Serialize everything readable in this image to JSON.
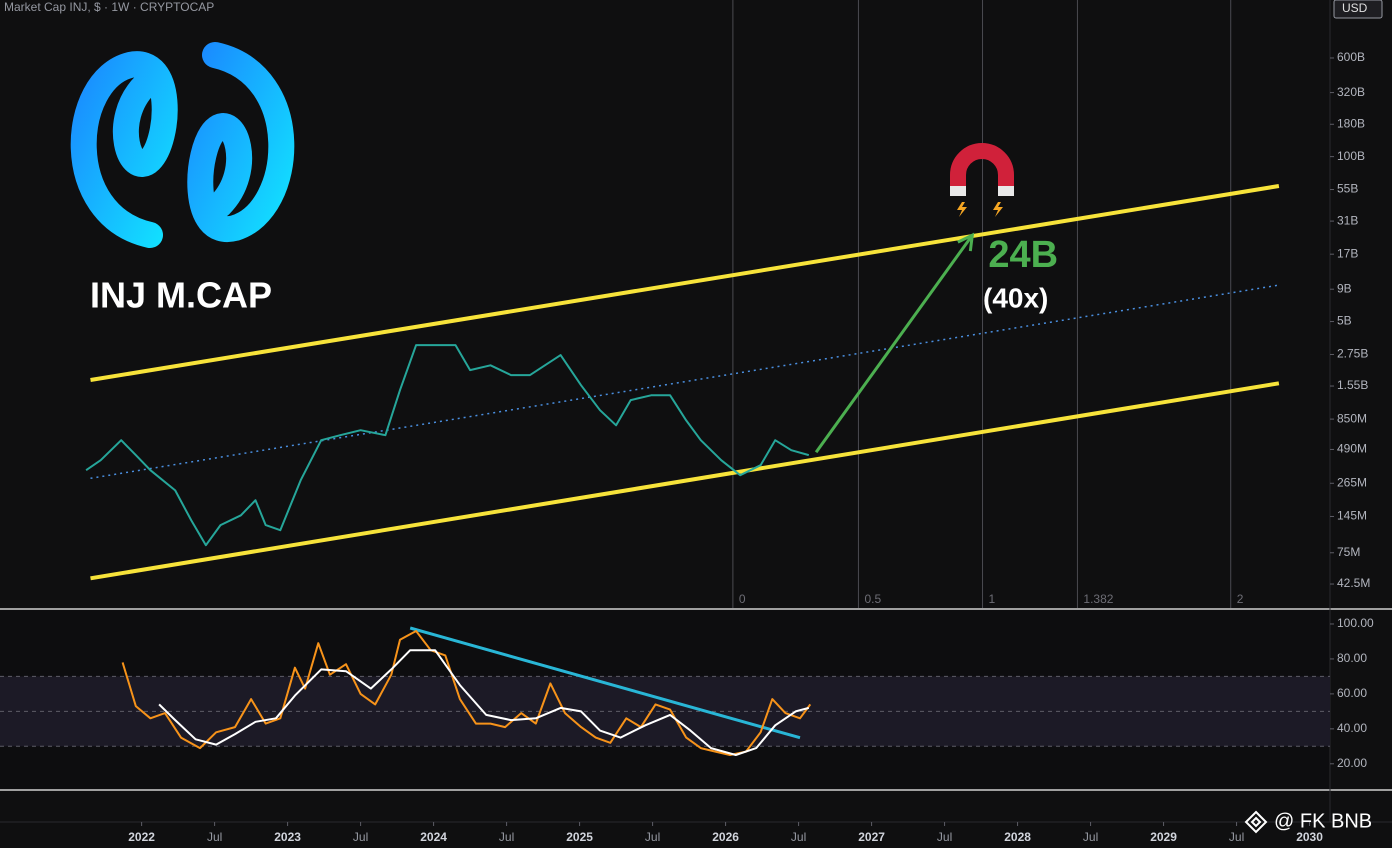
{
  "header": "Market Cap INJ, $ · 1W · CRYPTOCAP",
  "currency": "USD",
  "watermark": "@ FK BNB",
  "chart_data": [
    {
      "type": "line",
      "log_scale": true,
      "title": "INJ M.CAP",
      "xlim": [
        2021.03,
        2030.14
      ],
      "ylim": [
        27500000,
        1720000000000
      ],
      "yticks": [
        {
          "value": 600000000000,
          "label": "600B"
        },
        {
          "value": 320000000000,
          "label": "320B"
        },
        {
          "value": 180000000000,
          "label": "180B"
        },
        {
          "value": 100000000000,
          "label": "100B"
        },
        {
          "value": 55000000000,
          "label": "55B"
        },
        {
          "value": 31000000000,
          "label": "31B"
        },
        {
          "value": 17000000000,
          "label": "17B"
        },
        {
          "value": 9000000000,
          "label": "9B"
        },
        {
          "value": 5000000000,
          "label": "5B"
        },
        {
          "value": 2750000000,
          "label": "2.75B"
        },
        {
          "value": 1550000000,
          "label": "1.55B"
        },
        {
          "value": 850000000,
          "label": "850M"
        },
        {
          "value": 490000000,
          "label": "490M"
        },
        {
          "value": 265000000,
          "label": "265M"
        },
        {
          "value": 145000000,
          "label": "145M"
        },
        {
          "value": 75000000,
          "label": "75M"
        },
        {
          "value": 42500000,
          "label": "42.5M"
        }
      ],
      "xticks": [
        2022,
        {
          "value": 2022.5,
          "label": "Jul"
        },
        2023,
        {
          "value": 2023.5,
          "label": "Jul"
        },
        2024,
        {
          "value": 2024.5,
          "label": "Jul"
        },
        2025,
        {
          "value": 2025.5,
          "label": "Jul"
        },
        2026,
        {
          "value": 2026.5,
          "label": "Jul"
        },
        2027,
        {
          "value": 2027.5,
          "label": "Jul"
        },
        2028,
        {
          "value": 2028.5,
          "label": "Jul"
        },
        2029,
        {
          "value": 2029.5,
          "label": "Jul"
        },
        2030
      ],
      "series": [
        {
          "color": "#26a69a",
          "x": [
            2021.62,
            2021.72,
            2021.86,
            2021.96,
            2022.06,
            2022.23,
            2022.34,
            2022.44,
            2022.54,
            2022.68,
            2022.78,
            2022.85,
            2022.95,
            2023.09,
            2023.23,
            2023.36,
            2023.5,
            2023.67,
            2023.77,
            2023.88,
            2024.01,
            2024.15,
            2024.25,
            2024.39,
            2024.53,
            2024.66,
            2024.87,
            2025.01,
            2025.14,
            2025.25,
            2025.35,
            2025.49,
            2025.62,
            2025.73,
            2025.83,
            2025.97,
            2026.1,
            2026.24,
            2026.34,
            2026.45,
            2026.57
          ],
          "values": [
            336000000,
            403000000,
            579000000,
            442000000,
            336000000,
            233000000,
            135000000,
            86000000,
            124000000,
            148000000,
            195000000,
            124000000,
            113000000,
            280000000,
            579000000,
            634000000,
            695000000,
            634000000,
            1440000000,
            3260000000,
            3260000000,
            3260000000,
            2070000000,
            2260000000,
            1890000000,
            1890000000,
            2720000000,
            1570000000,
            1000000000,
            760000000,
            1200000000,
            1310000000,
            1310000000,
            830000000,
            579000000,
            403000000,
            307000000,
            368000000,
            579000000,
            483000000,
            442000000
          ]
        }
      ],
      "trendlines": [
        {
          "color": "#f7e33a",
          "style": "solid",
          "x": [
            2021.65,
            2029.79
          ],
          "values": [
            1730000000,
            58600000000
          ]
        },
        {
          "color": "#4a8fe0",
          "style": "dotted",
          "x": [
            2021.65,
            2029.79
          ],
          "values": [
            290000000,
            9700000000
          ]
        },
        {
          "color": "#f7e33a",
          "style": "solid",
          "x": [
            2021.65,
            2029.79
          ],
          "values": [
            47200000,
            1630000000
          ]
        }
      ],
      "fib_lines": [
        {
          "value": 2026.05,
          "label": "0"
        },
        {
          "value": 2026.91,
          "label": "0.5"
        },
        {
          "value": 2027.76,
          "label": "1"
        },
        {
          "value": 2028.41,
          "label": "1.382"
        },
        {
          "value": 2029.46,
          "label": "2"
        }
      ],
      "arrow": {
        "color": "#4caf50",
        "x": [
          2026.62,
          2027.69
        ],
        "from": 466000000
      },
      "target": {
        "value": 24000000000,
        "label": "24B"
      },
      "multiplier": "(40x)"
    },
    {
      "type": "line",
      "ylim": [
        5,
        108
      ],
      "yticks": [
        {
          "value": 100,
          "label": "100.00"
        },
        {
          "value": 80,
          "label": "80.00"
        },
        {
          "value": 60,
          "label": "60.00"
        },
        {
          "value": 40,
          "label": "40.00"
        },
        {
          "value": 20,
          "label": "20.00"
        }
      ],
      "levels": [
        30,
        50,
        70
      ],
      "series": [
        {
          "color": "#f7931a",
          "x": [
            2021.87,
            2021.96,
            2022.06,
            2022.16,
            2022.27,
            2022.4,
            2022.51,
            2022.64,
            2022.75,
            2022.85,
            2022.95,
            2023.05,
            2023.12,
            2023.21,
            2023.29,
            2023.4,
            2023.5,
            2023.6,
            2023.71,
            2023.77,
            2023.88,
            2023.98,
            2024.08,
            2024.18,
            2024.29,
            2024.39,
            2024.49,
            2024.6,
            2024.7,
            2024.8,
            2024.9,
            2025.01,
            2025.11,
            2025.21,
            2025.32,
            2025.42,
            2025.52,
            2025.62,
            2025.73,
            2025.83,
            2025.93,
            2026.03,
            2026.14,
            2026.24,
            2026.32,
            2026.41,
            2026.51,
            2026.58
          ],
          "values": [
            78,
            53,
            46,
            49,
            35,
            29,
            38,
            41,
            57,
            43,
            46,
            75,
            63,
            89,
            71,
            77,
            60,
            54,
            71,
            91,
            96,
            85,
            82,
            57,
            43,
            43,
            41,
            49,
            43,
            66,
            49,
            41,
            35,
            32,
            46,
            41,
            54,
            51,
            35,
            29,
            27,
            25,
            27,
            38,
            57,
            49,
            46,
            54
          ]
        },
        {
          "color": "#ffffff",
          "x": [
            2022.12,
            2022.23,
            2022.37,
            2022.51,
            2022.64,
            2022.78,
            2022.92,
            2023.05,
            2023.23,
            2023.4,
            2023.57,
            2023.71,
            2023.84,
            2024.01,
            2024.18,
            2024.36,
            2024.53,
            2024.7,
            2024.87,
            2025.01,
            2025.14,
            2025.28,
            2025.45,
            2025.62,
            2025.76,
            2025.9,
            2026.07,
            2026.21,
            2026.34,
            2026.48,
            2026.57
          ],
          "values": [
            54,
            45,
            34,
            31,
            37,
            44,
            46,
            59,
            74,
            73,
            63,
            74,
            85,
            85,
            65,
            48,
            45,
            46,
            52,
            50,
            39,
            35,
            42,
            48,
            39,
            29,
            25,
            29,
            42,
            50,
            52
          ]
        }
      ],
      "trendlines": [
        {
          "color": "#29b6d6",
          "style": "solid",
          "x": [
            2023.84,
            2026.51
          ],
          "values": [
            97.7,
            34.9
          ]
        }
      ]
    }
  ]
}
